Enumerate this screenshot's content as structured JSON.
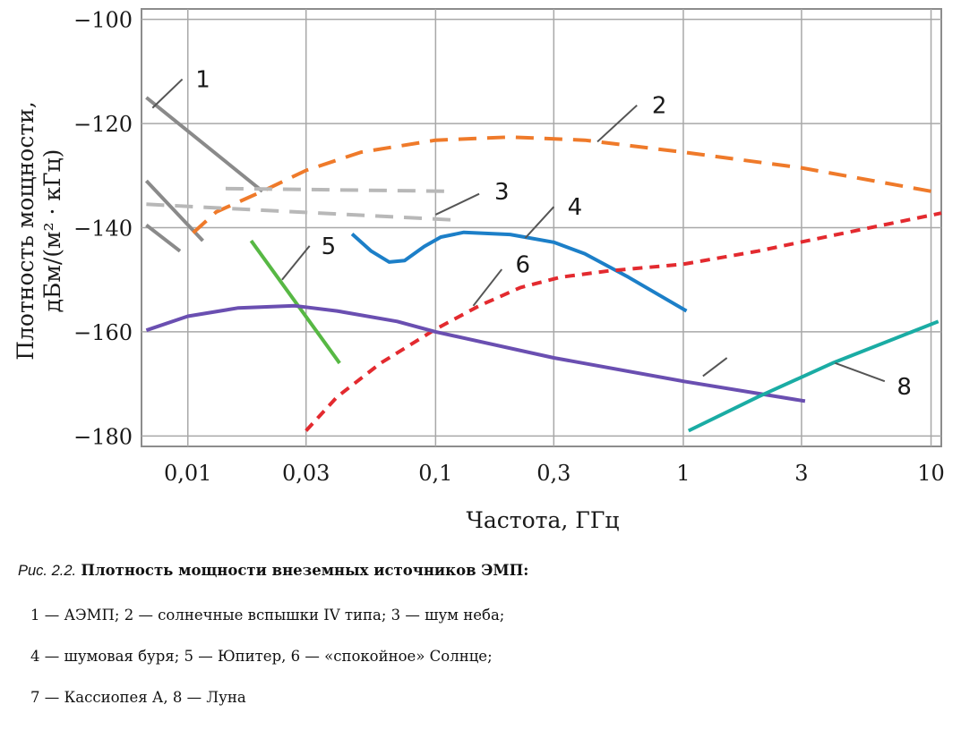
{
  "chart_data": {
    "type": "line",
    "title": "",
    "xlabel": "Частота, ГГц",
    "ylabel_line1": "Плотность мощности,",
    "ylabel_line2": "дБм/(м² · кГц)",
    "x_scale": "log",
    "xlim": [
      0.0065,
      11
    ],
    "ylim": [
      -182,
      -98
    ],
    "x_ticks": [
      {
        "value": 0.01,
        "label": "0,01"
      },
      {
        "value": 0.03,
        "label": "0,03"
      },
      {
        "value": 0.1,
        "label": "0,1"
      },
      {
        "value": 0.3,
        "label": "0,3"
      },
      {
        "value": 1,
        "label": "1"
      },
      {
        "value": 3,
        "label": "3"
      },
      {
        "value": 10,
        "label": "10"
      }
    ],
    "y_ticks": [
      {
        "value": -100,
        "label": "−100"
      },
      {
        "value": -120,
        "label": "−120"
      },
      {
        "value": -140,
        "label": "−140"
      },
      {
        "value": -160,
        "label": "−160"
      },
      {
        "value": -180,
        "label": "−180"
      }
    ],
    "grid": true,
    "series": [
      {
        "id": "1",
        "label": "1",
        "color": "#8a8a8a",
        "dash": "solid",
        "segments": [
          [
            [
              0.0068,
              -115
            ],
            [
              0.02,
              -133
            ]
          ],
          [
            [
              0.0068,
              -131
            ],
            [
              0.0115,
              -142.5
            ]
          ],
          [
            [
              0.0068,
              -139.5
            ],
            [
              0.0093,
              -144.5
            ]
          ]
        ]
      },
      {
        "id": "2",
        "label": "2",
        "color": "#ef7a2a",
        "dash": "long",
        "segments": [
          [
            [
              0.0105,
              -141
            ],
            [
              0.013,
              -137
            ],
            [
              0.02,
              -133
            ],
            [
              0.03,
              -129
            ],
            [
              0.05,
              -125.5
            ],
            [
              0.1,
              -123.2
            ],
            [
              0.2,
              -122.6
            ],
            [
              0.4,
              -123.2
            ],
            [
              1,
              -125.5
            ],
            [
              3,
              -128.5
            ],
            [
              10,
              -133
            ]
          ]
        ]
      },
      {
        "id": "3",
        "label": "3",
        "color": "#b8b8b8",
        "dash": "long",
        "segments": [
          [
            [
              0.0142,
              -132.5
            ],
            [
              0.117,
              -133
            ]
          ],
          [
            [
              0.0068,
              -135.5
            ],
            [
              0.117,
              -138.5
            ]
          ]
        ]
      },
      {
        "id": "4",
        "label": "4",
        "color": "#1c7fc8",
        "dash": "solid",
        "segments": [
          [
            [
              0.046,
              -141.2
            ],
            [
              0.055,
              -144.5
            ],
            [
              0.065,
              -146.6
            ],
            [
              0.075,
              -146.3
            ],
            [
              0.09,
              -143.6
            ],
            [
              0.105,
              -141.8
            ],
            [
              0.13,
              -140.9
            ],
            [
              0.2,
              -141.3
            ],
            [
              0.3,
              -142.8
            ],
            [
              0.4,
              -145
            ],
            [
              0.6,
              -149.5
            ],
            [
              1.03,
              -156
            ]
          ]
        ]
      },
      {
        "id": "5",
        "label": "5",
        "color": "#57b844",
        "dash": "solid",
        "segments": [
          [
            [
              0.018,
              -142.5
            ],
            [
              0.041,
              -166
            ]
          ]
        ]
      },
      {
        "id": "6",
        "label": "6",
        "color": "#e32a2f",
        "dash": "short",
        "segments": [
          [
            [
              0.03,
              -179
            ],
            [
              0.04,
              -172.5
            ],
            [
              0.06,
              -166
            ],
            [
              0.1,
              -159.5
            ],
            [
              0.15,
              -155
            ],
            [
              0.22,
              -151.5
            ],
            [
              0.32,
              -149.5
            ],
            [
              0.5,
              -148.3
            ],
            [
              1,
              -147
            ],
            [
              2,
              -144.5
            ],
            [
              4,
              -141.5
            ],
            [
              11,
              -137.2
            ]
          ]
        ]
      },
      {
        "id": "7",
        "label": "",
        "color": "#6a4fb1",
        "dash": "solid",
        "segments": [
          [
            [
              0.0068,
              -159.7
            ],
            [
              0.01,
              -157
            ],
            [
              0.016,
              -155.4
            ],
            [
              0.027,
              -155
            ],
            [
              0.04,
              -156
            ],
            [
              0.07,
              -158
            ],
            [
              0.1,
              -160
            ],
            [
              0.3,
              -165
            ],
            [
              1,
              -169.5
            ],
            [
              3.1,
              -173.3
            ]
          ]
        ]
      },
      {
        "id": "8",
        "label": "8",
        "color": "#1aaca4",
        "dash": "solid",
        "segments": [
          [
            [
              1.05,
              -179
            ],
            [
              2,
              -172.5
            ],
            [
              4,
              -166
            ],
            [
              10.7,
              -158
            ]
          ]
        ]
      }
    ],
    "annotations": [
      {
        "series": "1",
        "text": "1",
        "leader": [
          [
            0.0072,
            -117
          ],
          [
            0.0095,
            -111.5
          ]
        ],
        "text_at": [
          0.0115,
          -111.5
        ]
      },
      {
        "series": "2",
        "text": "2",
        "leader": [
          [
            0.45,
            -123.5
          ],
          [
            0.65,
            -116.5
          ]
        ],
        "text_at": [
          0.8,
          -116.5
        ]
      },
      {
        "series": "3",
        "text": "3",
        "leader": [
          [
            0.1,
            -137.5
          ],
          [
            0.15,
            -133.5
          ]
        ],
        "text_at": [
          0.185,
          -133
        ]
      },
      {
        "series": "4",
        "text": "4",
        "leader": [
          [
            0.23,
            -142
          ],
          [
            0.3,
            -136
          ]
        ],
        "text_at": [
          0.365,
          -136
        ]
      },
      {
        "series": "5",
        "text": "5",
        "leader": [
          [
            0.024,
            -150
          ],
          [
            0.031,
            -143.5
          ]
        ],
        "text_at": [
          0.037,
          -143.5
        ]
      },
      {
        "series": "6",
        "text": "6",
        "leader": [
          [
            0.142,
            -155
          ],
          [
            0.185,
            -148
          ]
        ],
        "text_at": [
          0.225,
          -147
        ]
      },
      {
        "series": "7",
        "text": "",
        "leader": [
          [
            1.2,
            -168.5
          ],
          [
            1.5,
            -165
          ]
        ],
        "text_at": [
          1.6,
          -165
        ]
      },
      {
        "series": "8",
        "text": "8",
        "leader": [
          [
            4.1,
            -166
          ],
          [
            6.5,
            -169.5
          ]
        ],
        "text_at": [
          7.8,
          -170.5
        ]
      }
    ]
  },
  "caption": {
    "fig_label": "Рис. 2.2.",
    "fig_title": "Плотность мощности внеземных источников ЭМП:",
    "legend_lines": [
      "1 — АЭМП; 2 — солнечные вспышки IV типа; 3 — шум неба;",
      "4 — шумовая буря; 5 — Юпитер, 6 — «спокойное» Солнце;",
      "7 — Кассиопея А, 8 — Луна"
    ]
  }
}
